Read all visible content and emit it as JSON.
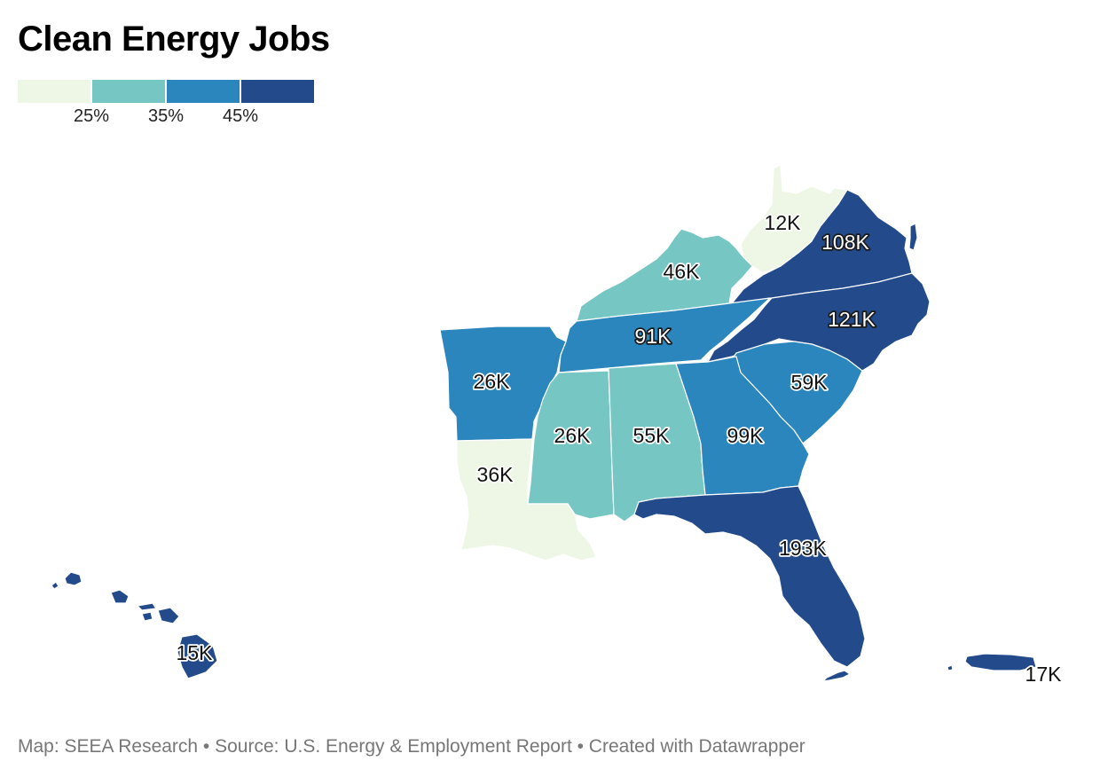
{
  "title": "Clean Energy Jobs",
  "legend": {
    "colors": [
      "#eef7e6",
      "#76c6c4",
      "#2b86bd",
      "#234b8b"
    ],
    "labels": [
      "25%",
      "35%",
      "45%"
    ]
  },
  "states": [
    {
      "id": "wv",
      "label": "12K",
      "color": "#eef7e6"
    },
    {
      "id": "va",
      "label": "108K",
      "color": "#234b8b"
    },
    {
      "id": "ky",
      "label": "46K",
      "color": "#76c6c4"
    },
    {
      "id": "nc",
      "label": "121K",
      "color": "#234b8b"
    },
    {
      "id": "tn",
      "label": "91K",
      "color": "#2b86bd"
    },
    {
      "id": "ar",
      "label": "26K",
      "color": "#2b86bd"
    },
    {
      "id": "sc",
      "label": "59K",
      "color": "#2b86bd"
    },
    {
      "id": "ms",
      "label": "26K",
      "color": "#76c6c4"
    },
    {
      "id": "al",
      "label": "55K",
      "color": "#76c6c4"
    },
    {
      "id": "ga",
      "label": "99K",
      "color": "#2b86bd"
    },
    {
      "id": "la",
      "label": "36K",
      "color": "#eef7e6"
    },
    {
      "id": "fl",
      "label": "193K",
      "color": "#234b8b"
    },
    {
      "id": "hi",
      "label": "15K",
      "color": "#234b8b"
    },
    {
      "id": "pr",
      "label": "17K",
      "color": "#234b8b"
    }
  ],
  "footer": "Map: SEEA Research • Source: U.S. Energy & Employment Report • Created with Datawrapper"
}
